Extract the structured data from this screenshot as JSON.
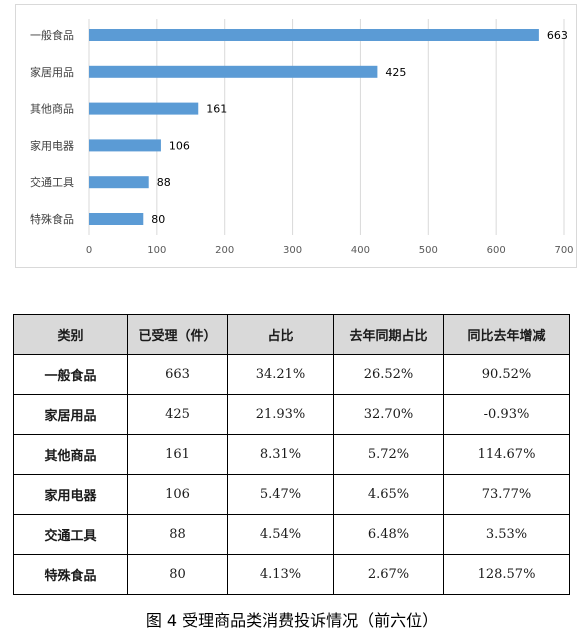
{
  "chart_data": {
    "type": "bar",
    "orientation": "horizontal",
    "categories": [
      "一般食品",
      "家居用品",
      "其他商品",
      "家用电器",
      "交通工具",
      "特殊食品"
    ],
    "values": [
      663,
      425,
      161,
      106,
      88,
      80
    ],
    "xlim": [
      0,
      700
    ],
    "xticks": [
      "0",
      "100",
      "200",
      "300",
      "400",
      "500",
      "600",
      "700"
    ],
    "grid": "vertical",
    "data_labels": true,
    "color": "#5b9bd5"
  },
  "table": {
    "headers": [
      "类别",
      "已受理（件）",
      "占比",
      "去年同期占比",
      "同比去年增减"
    ],
    "rows": [
      [
        "一般食品",
        "663",
        "34.21%",
        "26.52%",
        "90.52%"
      ],
      [
        "家居用品",
        "425",
        "21.93%",
        "32.70%",
        "-0.93%"
      ],
      [
        "其他商品",
        "161",
        "8.31%",
        "5.72%",
        "114.67%"
      ],
      [
        "家用电器",
        "106",
        "5.47%",
        "4.65%",
        "73.77%"
      ],
      [
        "交通工具",
        "88",
        "4.54%",
        "6.48%",
        "3.53%"
      ],
      [
        "特殊食品",
        "80",
        "4.13%",
        "2.67%",
        "128.57%"
      ]
    ]
  },
  "caption": "图 4  受理商品类消费投诉情况（前六位）"
}
